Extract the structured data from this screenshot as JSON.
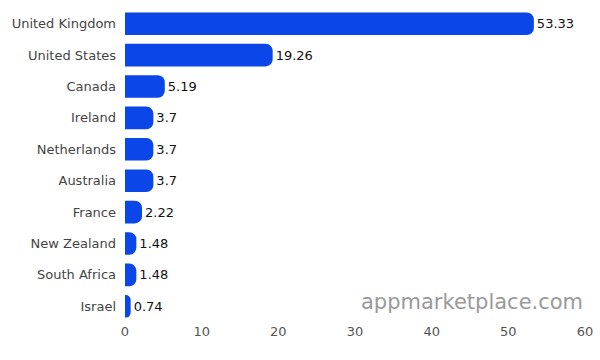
{
  "chart_data": {
    "type": "bar",
    "orientation": "horizontal",
    "categories": [
      "United Kingdom",
      "United States",
      "Canada",
      "Ireland",
      "Netherlands",
      "Australia",
      "France",
      "New Zealand",
      "South Africa",
      "Israel"
    ],
    "values": [
      53.33,
      19.26,
      5.19,
      3.7,
      3.7,
      3.7,
      2.22,
      1.48,
      1.48,
      0.74
    ],
    "color": "#0b46e8",
    "xlim": [
      0,
      60
    ],
    "xticks": [
      0,
      10,
      20,
      30,
      40,
      50,
      60
    ],
    "grid": false,
    "data_labels": true,
    "annotations": [
      "appmarketplace.com"
    ]
  }
}
